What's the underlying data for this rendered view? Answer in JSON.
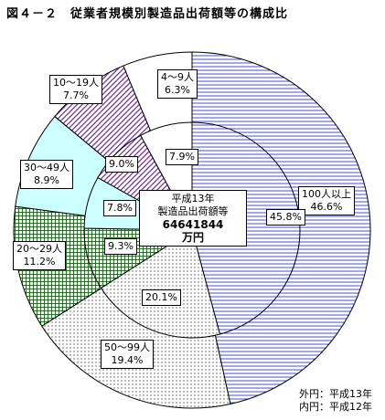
{
  "title": "図４－２　従業者規模別製造品出荷額等の構成比",
  "center": {
    "line1": "平成13年",
    "line2": "製造品出荷額等",
    "value": "64641844",
    "unit": "万円"
  },
  "legend": {
    "outer": "外円：平成13年",
    "inner": "内円：平成12年"
  },
  "chart_data": {
    "type": "pie",
    "categories": [
      "100人以上",
      "50～99人",
      "20～29人",
      "30～49人",
      "10～19人",
      "4～9人"
    ],
    "series": [
      {
        "values": [
          46.6,
          19.4,
          11.2,
          8.9,
          7.7,
          6.3
        ]
      },
      {
        "values": [
          45.8,
          20.1,
          9.3,
          7.8,
          9.0,
          7.9
        ]
      }
    ],
    "outer_labels": [
      "100人以上",
      "46.6%",
      "50～99人",
      "19.4%",
      "20～29人",
      "11.2%",
      "30～49人",
      "8.9%",
      "10～19人",
      "7.7%",
      "4～9人",
      "6.3%"
    ],
    "inner_labels": [
      "45.8%",
      "20.1%",
      "9.3%",
      "7.8%",
      "9.0%",
      "7.9%"
    ],
    "colors": {
      "100人以上": "#c8cbf2",
      "50～99人": "#f0f0f0",
      "20～29人": "#cfe8c8",
      "30～49人": "#ccffff",
      "10～19人": "#b08ac8",
      "4～9人": "#ffffff"
    }
  }
}
